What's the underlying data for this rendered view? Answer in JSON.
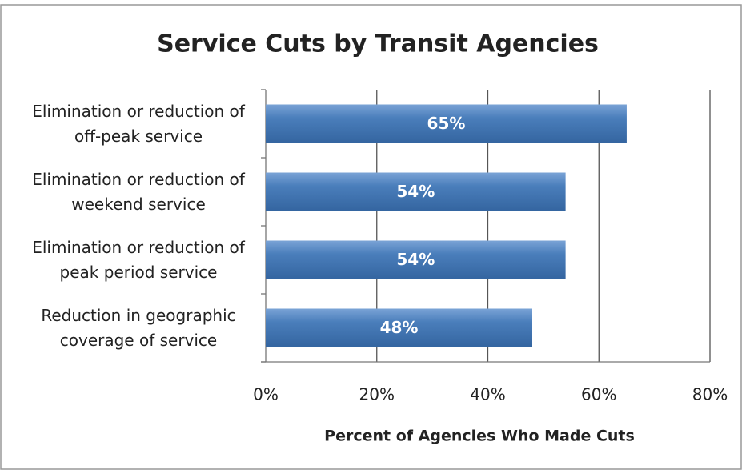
{
  "chart_data": {
    "type": "bar",
    "orientation": "horizontal",
    "title": "Service Cuts by Transit Agencies",
    "x_label": "Percent of Agencies Who Made Cuts",
    "categories": [
      "Elimination or reduction of off-peak service",
      "Elimination or reduction of weekend service",
      "Elimination or reduction of peak period service",
      "Reduction in geographic coverage of service"
    ],
    "values": [
      65,
      54,
      54,
      48
    ],
    "value_labels": [
      "65%",
      "54%",
      "54%",
      "48%"
    ],
    "color": "#4a7ebb",
    "xlim": [
      0,
      80
    ],
    "xticks": [
      {
        "value": 0,
        "label": "0%"
      },
      {
        "value": 20,
        "label": "20%"
      },
      {
        "value": 40,
        "label": "40%"
      },
      {
        "value": 60,
        "label": "60%"
      },
      {
        "value": 80,
        "label": "80%"
      }
    ],
    "grid": true
  }
}
